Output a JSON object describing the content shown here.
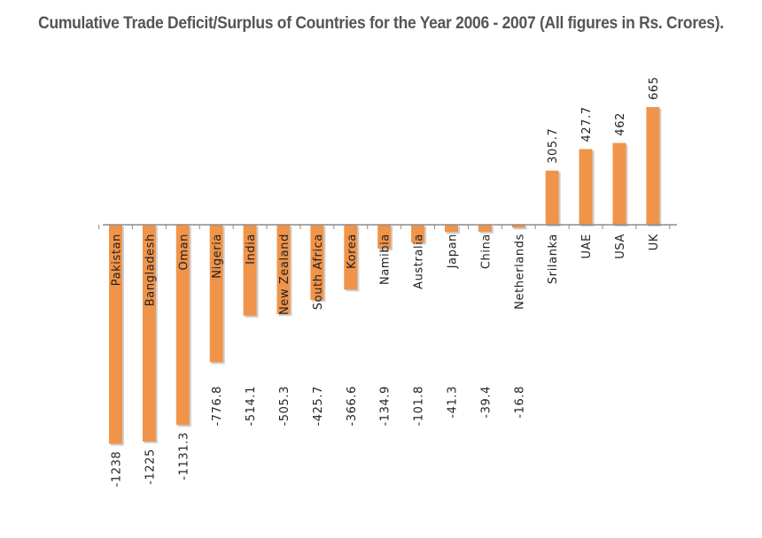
{
  "title": "Cumulative Trade Deficit/Surplus of Countries for the Year 2006 - 2007 (All figures in Rs. Crores).",
  "colors": {
    "bar": "#F0944A",
    "bar_shadow": "#cfcfcf",
    "axis": "#8c8c8c",
    "text": "#222222"
  },
  "chart_data": {
    "type": "bar",
    "title": "Cumulative Trade Deficit/Surplus of Countries for the Year 2006 - 2007 (All figures in Rs. Crores).",
    "categories": [
      "Pakistan",
      "Bangladesh",
      "Oman",
      "Nigeria",
      "India",
      "New Zealand",
      "South Africa",
      "Korea",
      "Namibia",
      "Australia",
      "Japan",
      "China",
      "Netherlands",
      "Srilanka",
      "UAE",
      "USA",
      "UK"
    ],
    "values": [
      -1238,
      -1225,
      -1131.3,
      -776.8,
      -514.1,
      -505.3,
      -425.7,
      -366.6,
      -134.9,
      -101.8,
      -41.3,
      -39.4,
      -16.8,
      305.7,
      427.7,
      462,
      665
    ],
    "value_labels": [
      "-1238",
      "-1225",
      "-1131.3",
      "-776.8",
      "-514.1",
      "-505.3",
      "-425.7",
      "-366.6",
      "-134.9",
      "-101.8",
      "-41.3",
      "-39.4",
      "-16.8",
      "305.7",
      "427.7",
      "462",
      "665"
    ],
    "grid": false,
    "legend": "none"
  }
}
